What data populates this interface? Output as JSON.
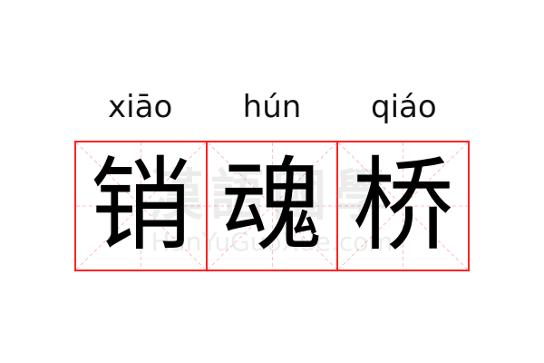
{
  "characters": [
    {
      "hanzi": "销",
      "pinyin": "xiāo"
    },
    {
      "hanzi": "魂",
      "pinyin": "hún"
    },
    {
      "hanzi": "桥",
      "pinyin": "qiáo"
    }
  ],
  "watermark": {
    "chinese": "漢語國學",
    "latin": "HanYuGuoXue.com"
  },
  "colors": {
    "grid": "#ff2222",
    "guide": "#ffaaaa",
    "text": "#000000"
  }
}
